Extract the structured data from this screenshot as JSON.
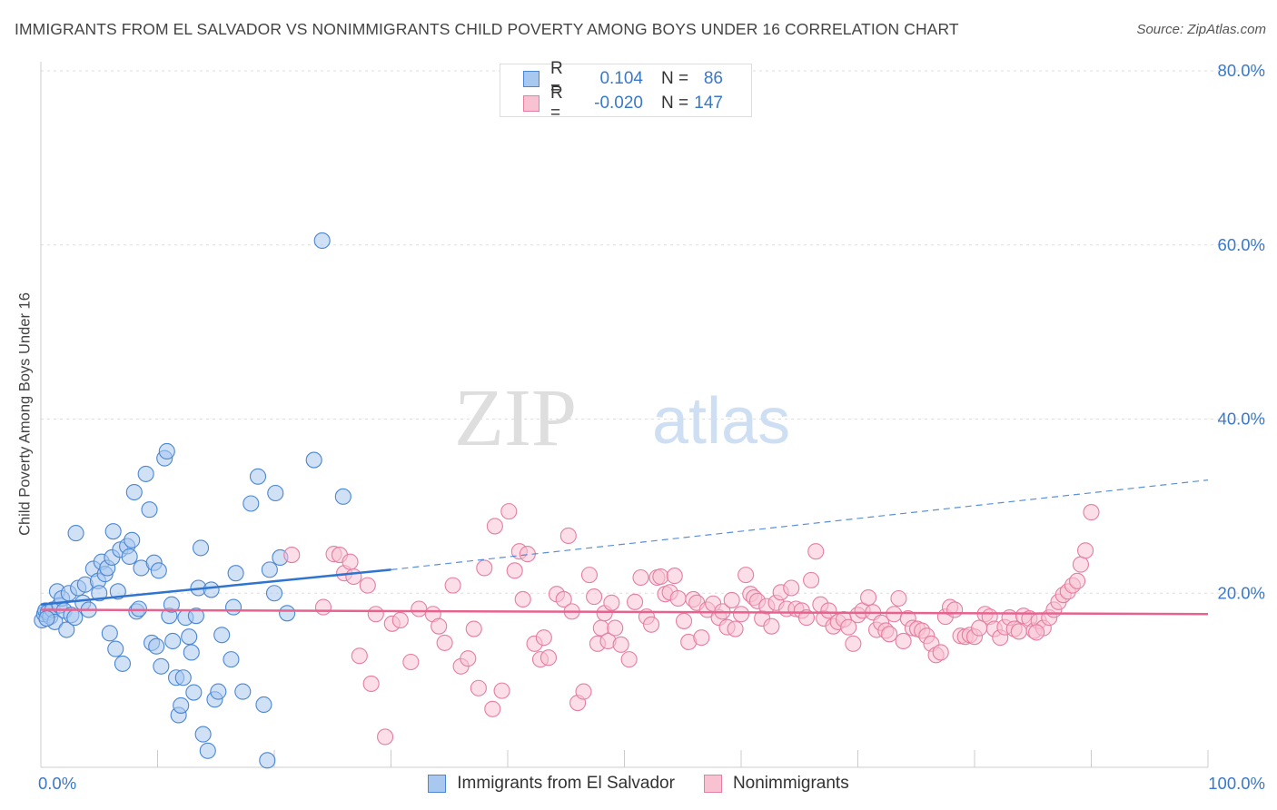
{
  "header": {
    "title": "IMMIGRANTS FROM EL SALVADOR VS NONIMMIGRANTS CHILD POVERTY AMONG BOYS UNDER 16 CORRELATION CHART",
    "source": "Source: ZipAtlas.com"
  },
  "watermark": {
    "zip": "ZIP",
    "atlas": "atlas"
  },
  "legend_top": {
    "r_label": "R =",
    "n_label": "N =",
    "rows": [
      {
        "r": "0.104",
        "n": "86"
      },
      {
        "r": "-0.020",
        "n": "147"
      }
    ]
  },
  "chart_data": {
    "type": "scatter",
    "title": "IMMIGRANTS FROM EL SALVADOR VS NONIMMIGRANTS CHILD POVERTY AMONG BOYS UNDER 16 CORRELATION CHART",
    "xlabel": "",
    "ylabel": "Child Poverty Among Boys Under 16",
    "xlim": [
      0,
      100
    ],
    "ylim": [
      0,
      80
    ],
    "x_tick_labels": [
      "0.0%",
      "100.0%"
    ],
    "y_ticks": [
      20,
      40,
      60,
      80
    ],
    "y_tick_labels": [
      "20.0%",
      "40.0%",
      "60.0%",
      "80.0%"
    ],
    "grid": true,
    "legend_position": "bottom",
    "colors": {
      "series1_fill": "#a9c8ef",
      "series1_stroke": "#4a86d4",
      "series1_line": "#2f74cf",
      "series2_fill": "#f8c2d3",
      "series2_stroke": "#e57ea0",
      "series2_line": "#e8628f",
      "tick_label": "#3a78c9",
      "grid": "#dddddd"
    },
    "series": [
      {
        "name": "Immigrants from El Salvador",
        "r": 0.104,
        "n": 86,
        "trend": {
          "x": [
            0,
            30
          ],
          "y": [
            18.7,
            22.7
          ],
          "dashed_to": [
            100,
            33
          ]
        },
        "points": [
          [
            0.1,
            16.9
          ],
          [
            0.3,
            17.6
          ],
          [
            0.4,
            18.0
          ],
          [
            0.6,
            17.8
          ],
          [
            0.8,
            17.3
          ],
          [
            1.0,
            18.1
          ],
          [
            1.2,
            16.7
          ],
          [
            1.4,
            20.2
          ],
          [
            1.6,
            18.6
          ],
          [
            1.8,
            19.4
          ],
          [
            2.0,
            18.0
          ],
          [
            2.2,
            15.8
          ],
          [
            2.4,
            20.0
          ],
          [
            2.6,
            17.5
          ],
          [
            2.9,
            17.2
          ],
          [
            3.0,
            26.9
          ],
          [
            3.2,
            20.6
          ],
          [
            3.6,
            18.9
          ],
          [
            3.8,
            21.0
          ],
          [
            4.1,
            18.1
          ],
          [
            4.5,
            22.8
          ],
          [
            4.9,
            21.4
          ],
          [
            5.0,
            20.0
          ],
          [
            5.2,
            23.6
          ],
          [
            5.5,
            22.2
          ],
          [
            5.7,
            22.9
          ],
          [
            5.9,
            15.4
          ],
          [
            6.1,
            24.1
          ],
          [
            6.2,
            27.1
          ],
          [
            6.4,
            13.6
          ],
          [
            6.6,
            20.2
          ],
          [
            6.8,
            25.0
          ],
          [
            7.0,
            11.9
          ],
          [
            7.4,
            25.4
          ],
          [
            7.6,
            24.2
          ],
          [
            7.8,
            26.1
          ],
          [
            8.0,
            31.6
          ],
          [
            8.2,
            17.9
          ],
          [
            8.4,
            18.2
          ],
          [
            8.6,
            22.9
          ],
          [
            9.0,
            33.7
          ],
          [
            9.3,
            29.6
          ],
          [
            9.5,
            14.3
          ],
          [
            9.7,
            23.5
          ],
          [
            9.9,
            13.9
          ],
          [
            10.1,
            22.6
          ],
          [
            10.3,
            11.6
          ],
          [
            10.6,
            35.5
          ],
          [
            10.8,
            36.3
          ],
          [
            11.0,
            17.4
          ],
          [
            11.2,
            18.7
          ],
          [
            11.3,
            14.5
          ],
          [
            11.6,
            10.3
          ],
          [
            11.8,
            6.0
          ],
          [
            12.0,
            7.1
          ],
          [
            12.2,
            10.3
          ],
          [
            12.4,
            17.2
          ],
          [
            12.7,
            15.0
          ],
          [
            12.9,
            13.2
          ],
          [
            13.1,
            8.6
          ],
          [
            13.3,
            17.4
          ],
          [
            13.5,
            20.6
          ],
          [
            13.7,
            25.2
          ],
          [
            13.9,
            3.8
          ],
          [
            14.3,
            1.9
          ],
          [
            14.6,
            20.4
          ],
          [
            14.9,
            7.8
          ],
          [
            15.2,
            8.7
          ],
          [
            15.5,
            15.2
          ],
          [
            16.3,
            12.4
          ],
          [
            16.5,
            18.4
          ],
          [
            16.7,
            22.3
          ],
          [
            17.3,
            8.7
          ],
          [
            18.0,
            30.3
          ],
          [
            18.6,
            33.4
          ],
          [
            19.1,
            7.2
          ],
          [
            19.4,
            0.8
          ],
          [
            19.6,
            22.7
          ],
          [
            20.0,
            20.0
          ],
          [
            20.1,
            31.5
          ],
          [
            20.5,
            24.1
          ],
          [
            21.1,
            17.7
          ],
          [
            23.4,
            35.3
          ],
          [
            24.1,
            60.5
          ],
          [
            25.9,
            31.1
          ],
          [
            0.5,
            17.1
          ]
        ]
      },
      {
        "name": "Nonimmigrants",
        "r": -0.02,
        "n": 147,
        "trend": {
          "x": [
            0,
            100
          ],
          "y": [
            18.1,
            17.6
          ]
        },
        "points": [
          [
            21.5,
            24.4
          ],
          [
            24.2,
            18.4
          ],
          [
            25.1,
            24.5
          ],
          [
            25.6,
            24.4
          ],
          [
            26.0,
            22.3
          ],
          [
            26.5,
            23.6
          ],
          [
            26.8,
            21.9
          ],
          [
            27.3,
            12.8
          ],
          [
            28.0,
            20.9
          ],
          [
            28.3,
            9.6
          ],
          [
            28.7,
            17.6
          ],
          [
            29.5,
            3.5
          ],
          [
            30.1,
            16.5
          ],
          [
            30.8,
            16.9
          ],
          [
            31.7,
            12.1
          ],
          [
            32.4,
            18.2
          ],
          [
            33.6,
            17.6
          ],
          [
            34.1,
            16.2
          ],
          [
            34.6,
            14.3
          ],
          [
            35.3,
            20.9
          ],
          [
            36.0,
            11.6
          ],
          [
            36.6,
            12.5
          ],
          [
            37.1,
            15.9
          ],
          [
            37.5,
            9.1
          ],
          [
            38.0,
            22.9
          ],
          [
            38.7,
            6.7
          ],
          [
            38.9,
            27.7
          ],
          [
            39.5,
            8.8
          ],
          [
            40.1,
            29.4
          ],
          [
            40.6,
            22.6
          ],
          [
            41.0,
            24.8
          ],
          [
            41.3,
            19.3
          ],
          [
            41.7,
            24.5
          ],
          [
            42.3,
            14.2
          ],
          [
            42.8,
            12.4
          ],
          [
            43.1,
            14.9
          ],
          [
            43.5,
            12.6
          ],
          [
            44.2,
            19.9
          ],
          [
            44.8,
            19.3
          ],
          [
            45.2,
            26.6
          ],
          [
            45.5,
            17.9
          ],
          [
            46.0,
            7.4
          ],
          [
            46.5,
            8.7
          ],
          [
            47.0,
            22.1
          ],
          [
            47.4,
            19.6
          ],
          [
            47.7,
            14.2
          ],
          [
            48.0,
            16.0
          ],
          [
            48.3,
            17.7
          ],
          [
            48.6,
            14.5
          ],
          [
            48.9,
            18.9
          ],
          [
            49.2,
            16.0
          ],
          [
            49.7,
            14.1
          ],
          [
            50.4,
            12.4
          ],
          [
            50.9,
            19.0
          ],
          [
            51.4,
            21.8
          ],
          [
            51.9,
            17.3
          ],
          [
            52.3,
            16.4
          ],
          [
            52.8,
            21.8
          ],
          [
            53.1,
            21.9
          ],
          [
            53.5,
            19.9
          ],
          [
            53.9,
            20.1
          ],
          [
            54.3,
            22.0
          ],
          [
            54.6,
            19.4
          ],
          [
            55.1,
            16.8
          ],
          [
            55.5,
            14.4
          ],
          [
            55.9,
            19.3
          ],
          [
            56.2,
            18.9
          ],
          [
            56.6,
            14.9
          ],
          [
            57.1,
            18.1
          ],
          [
            57.6,
            18.8
          ],
          [
            58.1,
            17.2
          ],
          [
            58.4,
            17.9
          ],
          [
            58.8,
            16.1
          ],
          [
            59.2,
            19.2
          ],
          [
            59.5,
            15.9
          ],
          [
            60.0,
            17.6
          ],
          [
            60.4,
            22.1
          ],
          [
            60.8,
            19.9
          ],
          [
            61.1,
            19.5
          ],
          [
            61.4,
            19.1
          ],
          [
            61.8,
            17.1
          ],
          [
            62.2,
            18.5
          ],
          [
            62.6,
            16.2
          ],
          [
            63.0,
            18.9
          ],
          [
            63.4,
            20.1
          ],
          [
            63.9,
            18.2
          ],
          [
            64.3,
            20.6
          ],
          [
            64.7,
            18.2
          ],
          [
            65.2,
            18.0
          ],
          [
            65.6,
            17.2
          ],
          [
            66.0,
            21.5
          ],
          [
            66.4,
            24.8
          ],
          [
            66.8,
            18.7
          ],
          [
            67.1,
            17.1
          ],
          [
            67.5,
            18.0
          ],
          [
            67.9,
            16.2
          ],
          [
            68.3,
            16.7
          ],
          [
            68.8,
            17.0
          ],
          [
            69.2,
            16.1
          ],
          [
            69.6,
            14.2
          ],
          [
            70.0,
            17.5
          ],
          [
            70.4,
            18.0
          ],
          [
            70.9,
            19.5
          ],
          [
            71.3,
            17.8
          ],
          [
            71.6,
            15.8
          ],
          [
            72.0,
            16.6
          ],
          [
            72.4,
            15.7
          ],
          [
            72.7,
            15.3
          ],
          [
            73.1,
            17.6
          ],
          [
            73.5,
            19.4
          ],
          [
            73.9,
            14.5
          ],
          [
            74.3,
            17.1
          ],
          [
            74.7,
            16.0
          ],
          [
            75.1,
            15.9
          ],
          [
            75.5,
            15.7
          ],
          [
            75.9,
            15.1
          ],
          [
            76.3,
            14.2
          ],
          [
            76.7,
            12.9
          ],
          [
            77.1,
            13.2
          ],
          [
            77.5,
            17.3
          ],
          [
            77.9,
            18.4
          ],
          [
            78.3,
            18.1
          ],
          [
            78.8,
            15.1
          ],
          [
            79.2,
            15.0
          ],
          [
            79.6,
            15.2
          ],
          [
            80.0,
            15.0
          ],
          [
            80.4,
            16.0
          ],
          [
            80.9,
            17.6
          ],
          [
            81.3,
            17.3
          ],
          [
            81.7,
            15.9
          ],
          [
            82.2,
            14.9
          ],
          [
            82.6,
            16.1
          ],
          [
            83.0,
            17.2
          ],
          [
            83.4,
            15.9
          ],
          [
            83.8,
            15.6
          ],
          [
            84.2,
            17.4
          ],
          [
            84.7,
            17.1
          ],
          [
            85.1,
            15.7
          ],
          [
            85.5,
            16.8
          ],
          [
            85.9,
            16.0
          ],
          [
            86.4,
            17.2
          ],
          [
            86.8,
            18.1
          ],
          [
            87.2,
            19.0
          ],
          [
            87.6,
            19.8
          ],
          [
            88.0,
            20.2
          ],
          [
            88.4,
            20.9
          ],
          [
            88.8,
            21.4
          ],
          [
            89.1,
            23.3
          ],
          [
            89.5,
            24.9
          ],
          [
            90.0,
            29.3
          ],
          [
            85.3,
            15.5
          ]
        ]
      }
    ]
  }
}
